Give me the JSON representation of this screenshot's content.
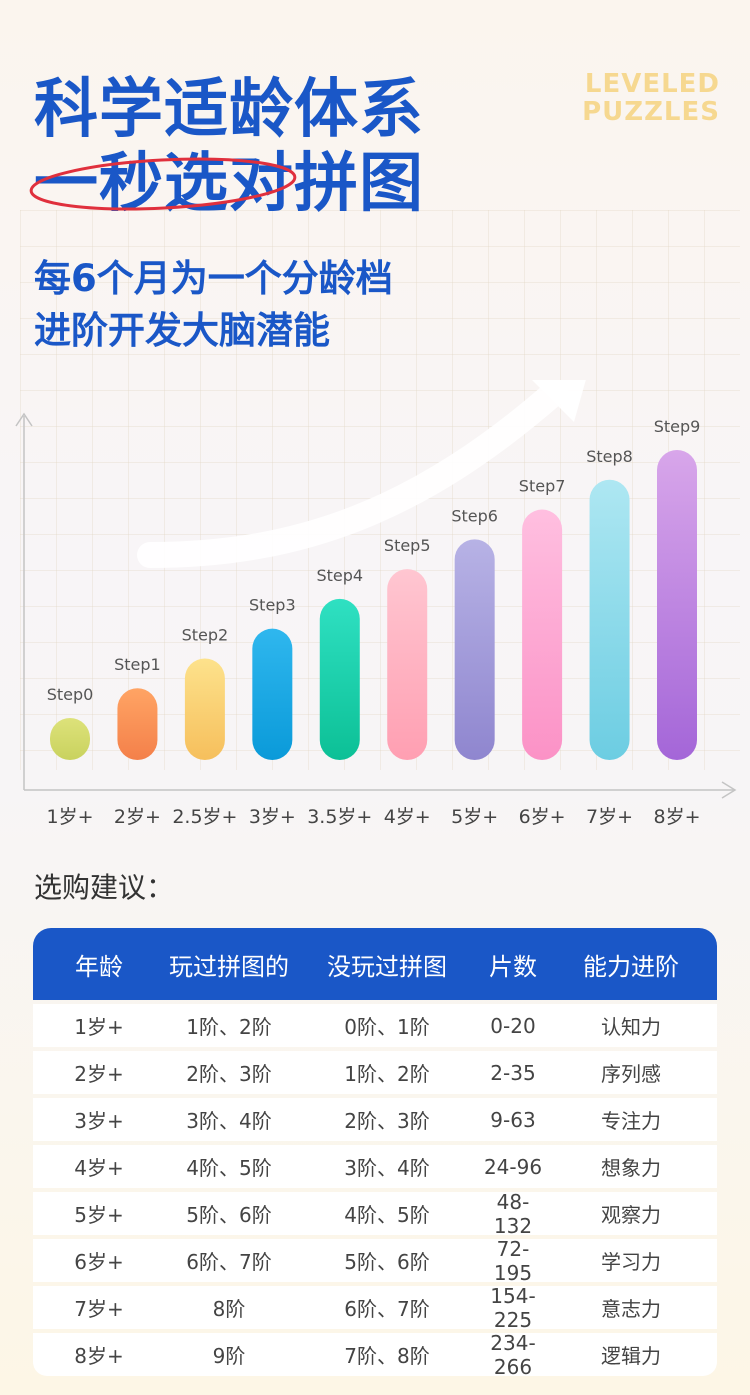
{
  "header": {
    "title_line1": "科学适龄体系",
    "title_line2": "一秒选对拼图",
    "badge_line1": "LEVELED",
    "badge_line2": "PUZZLES",
    "subtitle_line1": "每6个月为一个分龄档",
    "subtitle_line2": "进阶开发大脑潜能"
  },
  "chart_data": {
    "type": "bar",
    "categories": [
      "1岁+",
      "2岁+",
      "2.5岁+",
      "3岁+",
      "3.5岁+",
      "4岁+",
      "5岁+",
      "6岁+",
      "7岁+",
      "8岁+"
    ],
    "bar_labels": [
      "Step0",
      "Step1",
      "Step2",
      "Step3",
      "Step4",
      "Step5",
      "Step6",
      "Step7",
      "Step8",
      "Step9"
    ],
    "values": [
      0,
      1,
      2,
      3,
      4,
      5,
      6,
      7,
      8,
      9
    ],
    "colors": [
      [
        "#dde27a",
        "#c9d25e"
      ],
      [
        "#ffa464",
        "#f4804a"
      ],
      [
        "#fde28c",
        "#f6bf5c"
      ],
      [
        "#2fb7ee",
        "#0a9ad9"
      ],
      [
        "#2fe0c2",
        "#0cc096"
      ],
      [
        "#ffc6d1",
        "#ff9fb2"
      ],
      [
        "#b7b2e5",
        "#8f86cf"
      ],
      [
        "#ffbfe0",
        "#fb92c6"
      ],
      [
        "#aee7f2",
        "#6ccde2"
      ],
      [
        "#d8a6ea",
        "#a466d8"
      ]
    ],
    "trend": "rising arrow",
    "grid": true,
    "xlabel": "",
    "ylabel": ""
  },
  "recommend": {
    "title": "选购建议：",
    "headers": [
      "年龄",
      "玩过拼图的",
      "没玩过拼图",
      "片数",
      "能力进阶"
    ],
    "rows": [
      [
        "1岁+",
        "1阶、2阶",
        "0阶、1阶",
        "0-20",
        "认知力"
      ],
      [
        "2岁+",
        "2阶、3阶",
        "1阶、2阶",
        "2-35",
        "序列感"
      ],
      [
        "3岁+",
        "3阶、4阶",
        "2阶、3阶",
        "9-63",
        "专注力"
      ],
      [
        "4岁+",
        "4阶、5阶",
        "3阶、4阶",
        "24-96",
        "想象力"
      ],
      [
        "5岁+",
        "5阶、6阶",
        "4阶、5阶",
        "48-132",
        "观察力"
      ],
      [
        "6岁+",
        "6阶、7阶",
        "5阶、6阶",
        "72-195",
        "学习力"
      ],
      [
        "7岁+",
        "8阶",
        "6阶、7阶",
        "154-225",
        "意志力"
      ],
      [
        "8岁+",
        "9阶",
        "7阶、8阶",
        "234-266",
        "逻辑力"
      ]
    ]
  }
}
